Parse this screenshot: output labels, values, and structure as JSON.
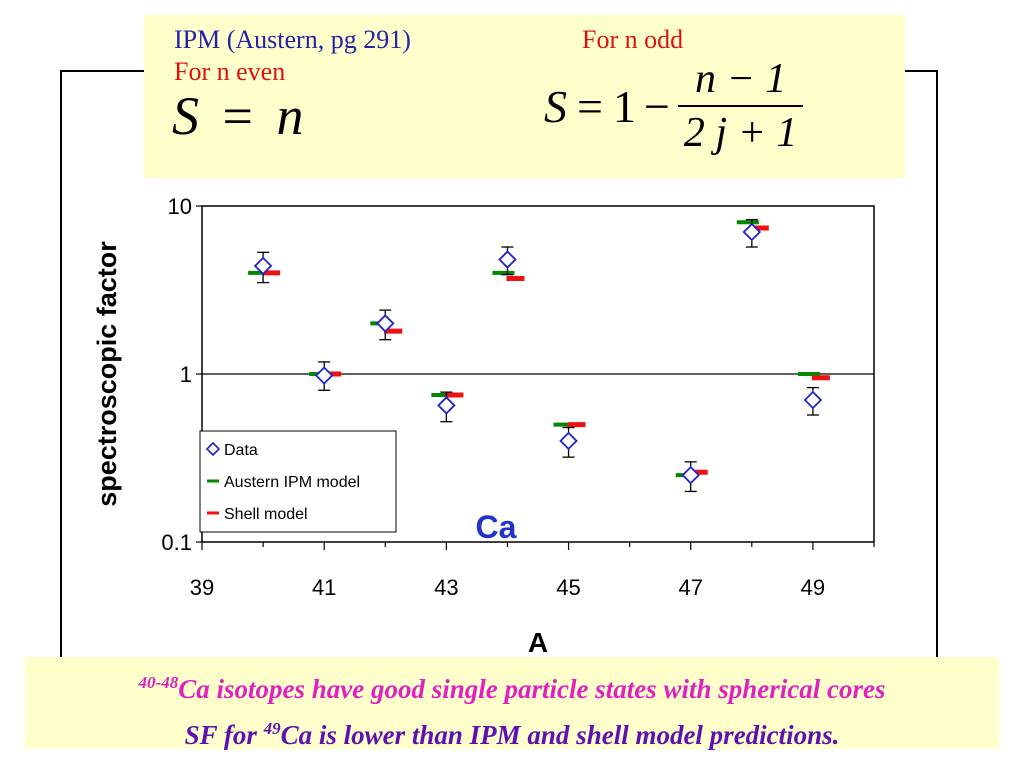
{
  "formula": {
    "ipm_title": "IPM (Austern, pg 291)",
    "even_label": "For n even",
    "even_lhs": "S",
    "even_eq": "=",
    "even_rhs": "n",
    "odd_label": "For n odd",
    "odd_lhs": "S",
    "odd_eq": "=",
    "odd_one": "1",
    "odd_minus": "−",
    "odd_num": "n − 1",
    "odd_den": "2 j + 1"
  },
  "chart_data": {
    "type": "scatter",
    "title": "",
    "xlabel": "A",
    "ylabel": "spectroscopic factor",
    "y_scale": "log",
    "xlim": [
      39,
      50
    ],
    "ylim": [
      0.1,
      10
    ],
    "x_ticks": [
      39,
      41,
      43,
      45,
      47,
      49
    ],
    "y_ticks": [
      0.1,
      1,
      10
    ],
    "y_tick_labels": [
      "0.1",
      "1",
      "10"
    ],
    "gridlines": [
      1
    ],
    "annotation": "Ca",
    "legend_position": "bottom-left",
    "series": [
      {
        "name": "Data",
        "marker": "diamond",
        "color": "#2222cc",
        "x": [
          40,
          41,
          42,
          43,
          44,
          45,
          47,
          48,
          49
        ],
        "y": [
          4.4,
          0.98,
          2.0,
          0.65,
          4.8,
          0.4,
          0.25,
          7.0,
          0.7
        ],
        "err_low": [
          3.5,
          0.8,
          1.6,
          0.52,
          3.9,
          0.32,
          0.2,
          5.7,
          0.57
        ],
        "err_high": [
          5.3,
          1.18,
          2.4,
          0.78,
          5.7,
          0.48,
          0.3,
          8.3,
          0.83
        ]
      },
      {
        "name": "Austern IPM model",
        "marker": "dash",
        "color": "#008800",
        "x": [
          40,
          41,
          42,
          43,
          44,
          45,
          47,
          48,
          49
        ],
        "y": [
          4.0,
          1.0,
          2.0,
          0.75,
          4.0,
          0.5,
          0.25,
          8.0,
          1.0
        ]
      },
      {
        "name": "Shell model",
        "marker": "dash",
        "color": "#ee1111",
        "x": [
          40,
          41,
          42,
          43,
          44,
          45,
          47,
          48,
          49
        ],
        "y": [
          4.0,
          1.0,
          1.8,
          0.75,
          3.7,
          0.5,
          0.26,
          7.4,
          0.95
        ]
      }
    ]
  },
  "footer": {
    "line1_sup": "40-48",
    "line1_text": "Ca isotopes have good single particle states with spherical cores",
    "line2_prefix": "SF for ",
    "line2_sup": "49",
    "line2_text": "Ca is lower than IPM and shell model predictions."
  }
}
